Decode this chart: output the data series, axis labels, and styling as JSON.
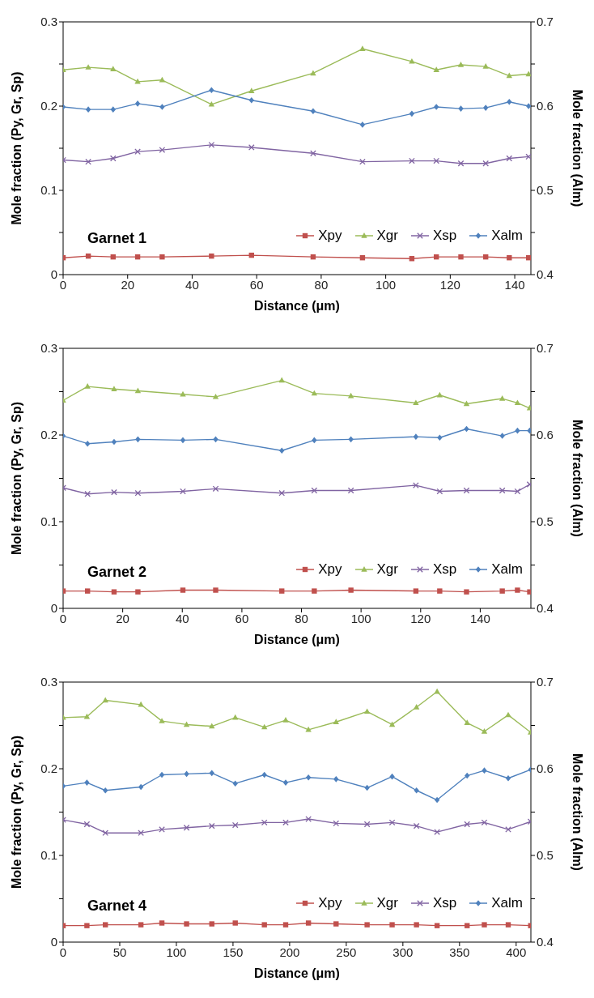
{
  "chart_data": [
    {
      "type": "line",
      "xlabel": "Distance (μm)",
      "ylabel": "Mole fraction (Py, Gr, Sp)",
      "y2label": "Mole fraction (Alm)",
      "annotations": [
        "Garnet 1"
      ],
      "legend": "bottom right",
      "x": [
        0,
        7.8,
        15.5,
        23.1,
        30.7,
        46,
        58.4,
        77.5,
        92.8,
        108.1,
        115.7,
        123.3,
        131,
        138.3,
        144.3
      ],
      "xlim": [
        0,
        145
      ],
      "xticks": [
        0,
        20,
        40,
        60,
        80,
        100,
        120,
        140
      ],
      "ylim": [
        0,
        0.3
      ],
      "yticks": [
        0,
        {
          "value": 0.05,
          "label": null
        },
        0.1,
        {
          "value": 0.15,
          "label": null
        },
        0.2,
        {
          "value": 0.25,
          "label": null
        },
        0.3
      ],
      "y2lim": [
        0.4,
        0.7
      ],
      "y2ticks": [
        0.4,
        {
          "value": 0.45,
          "label": null
        },
        0.5,
        {
          "value": 0.55,
          "label": null
        },
        0.6,
        {
          "value": 0.65,
          "label": null
        },
        0.7
      ],
      "series": [
        {
          "name": "Xpy",
          "color": "#c0504d",
          "marker": "square",
          "values": [
            0.02,
            0.022,
            0.021,
            0.021,
            0.021,
            0.022,
            0.023,
            0.021,
            0.02,
            0.019,
            0.021,
            0.021,
            0.021,
            0.02,
            0.02
          ]
        },
        {
          "name": "Xgr",
          "color": "#9bbb59",
          "marker": "triangle",
          "values": [
            0.243,
            0.246,
            0.244,
            0.229,
            0.231,
            0.202,
            0.218,
            0.239,
            0.268,
            0.253,
            0.243,
            0.249,
            0.247,
            0.236,
            0.238
          ]
        },
        {
          "name": "Xsp",
          "color": "#8064a2",
          "marker": "cross",
          "values": [
            0.136,
            0.134,
            0.138,
            0.146,
            0.148,
            0.154,
            0.151,
            0.144,
            0.134,
            0.135,
            0.135,
            0.132,
            0.132,
            0.138,
            0.14
          ]
        },
        {
          "name": "Xalm",
          "color": "#4f81bd",
          "marker": "diamond",
          "axis": "y2",
          "values": [
            0.599,
            0.596,
            0.596,
            0.603,
            0.599,
            0.619,
            0.607,
            0.594,
            0.578,
            0.591,
            0.599,
            0.597,
            0.598,
            0.605,
            0.6
          ]
        }
      ]
    },
    {
      "type": "line",
      "xlabel": "Distance (μm)",
      "ylabel": "Mole fraction (Py, Gr, Sp)",
      "y2label": "Mole fraction (Alm)",
      "annotations": [
        "Garnet 2"
      ],
      "legend": "bottom right",
      "x": [
        0,
        8.2,
        17.1,
        25.1,
        40.2,
        51.2,
        73.4,
        84.3,
        96.6,
        118.4,
        126.4,
        135.4,
        147.4,
        152.5,
        156.6
      ],
      "xlim": [
        0,
        157
      ],
      "xticks": [
        0,
        20,
        40,
        60,
        80,
        100,
        120,
        140
      ],
      "ylim": [
        0,
        0.3
      ],
      "yticks": [
        0,
        {
          "value": 0.05,
          "label": null
        },
        0.1,
        {
          "value": 0.15,
          "label": null
        },
        0.2,
        {
          "value": 0.25,
          "label": null
        },
        0.3
      ],
      "y2lim": [
        0.4,
        0.7
      ],
      "y2ticks": [
        0.4,
        {
          "value": 0.45,
          "label": null
        },
        0.5,
        {
          "value": 0.55,
          "label": null
        },
        0.6,
        {
          "value": 0.65,
          "label": null
        },
        0.7
      ],
      "series": [
        {
          "name": "Xpy",
          "color": "#c0504d",
          "marker": "square",
          "values": [
            0.02,
            0.02,
            0.019,
            0.019,
            0.021,
            0.021,
            0.02,
            0.02,
            0.021,
            0.02,
            0.02,
            0.019,
            0.02,
            0.021,
            0.019
          ]
        },
        {
          "name": "Xgr",
          "color": "#9bbb59",
          "marker": "triangle",
          "values": [
            0.24,
            0.256,
            0.253,
            0.251,
            0.247,
            0.244,
            0.263,
            0.248,
            0.245,
            0.237,
            0.246,
            0.236,
            0.242,
            0.237,
            0.231
          ]
        },
        {
          "name": "Xsp",
          "color": "#8064a2",
          "marker": "cross",
          "values": [
            0.139,
            0.132,
            0.134,
            0.133,
            0.135,
            0.138,
            0.133,
            0.136,
            0.136,
            0.142,
            0.135,
            0.136,
            0.136,
            0.135,
            0.143
          ]
        },
        {
          "name": "Xalm",
          "color": "#4f81bd",
          "marker": "diamond",
          "axis": "y2",
          "values": [
            0.599,
            0.59,
            0.592,
            0.595,
            0.594,
            0.595,
            0.582,
            0.594,
            0.595,
            0.598,
            0.597,
            0.607,
            0.599,
            0.605,
            0.605
          ]
        }
      ]
    },
    {
      "type": "line",
      "xlabel": "Distance (μm)",
      "ylabel": "Mole fraction (Py, Gr, Sp)",
      "y2label": "Mole fraction (Alm)",
      "annotations": [
        "Garnet 4"
      ],
      "legend": "bottom right",
      "x": [
        0,
        21,
        37.3,
        68.7,
        87.2,
        109,
        131.3,
        152,
        177.7,
        196.5,
        216.6,
        241,
        268.4,
        290.5,
        312,
        330.2,
        356.7,
        371.9,
        393,
        412.8
      ],
      "xlim": [
        0,
        413
      ],
      "xticks": [
        0,
        50,
        100,
        150,
        200,
        250,
        300,
        350,
        400
      ],
      "ylim": [
        0,
        0.3
      ],
      "yticks": [
        0,
        {
          "value": 0.05,
          "label": null
        },
        0.1,
        {
          "value": 0.15,
          "label": null
        },
        0.2,
        {
          "value": 0.25,
          "label": null
        },
        0.3
      ],
      "y2lim": [
        0.4,
        0.7
      ],
      "y2ticks": [
        0.4,
        {
          "value": 0.45,
          "label": null
        },
        0.5,
        {
          "value": 0.55,
          "label": null
        },
        0.6,
        {
          "value": 0.65,
          "label": null
        },
        0.7
      ],
      "series": [
        {
          "name": "Xpy",
          "color": "#c0504d",
          "marker": "square",
          "values": [
            0.019,
            0.019,
            0.02,
            0.02,
            0.022,
            0.021,
            0.021,
            0.022,
            0.02,
            0.02,
            0.022,
            0.021,
            0.02,
            0.02,
            0.02,
            0.019,
            0.019,
            0.02,
            0.02,
            0.019
          ]
        },
        {
          "name": "Xgr",
          "color": "#9bbb59",
          "marker": "triangle",
          "values": [
            0.259,
            0.26,
            0.279,
            0.274,
            0.255,
            0.251,
            0.249,
            0.259,
            0.248,
            0.256,
            0.245,
            0.254,
            0.266,
            0.251,
            0.271,
            0.289,
            0.253,
            0.243,
            0.262,
            0.242
          ]
        },
        {
          "name": "Xsp",
          "color": "#8064a2",
          "marker": "cross",
          "values": [
            0.141,
            0.136,
            0.126,
            0.126,
            0.13,
            0.132,
            0.134,
            0.135,
            0.138,
            0.138,
            0.142,
            0.137,
            0.136,
            0.138,
            0.134,
            0.127,
            0.136,
            0.138,
            0.13,
            0.139
          ]
        },
        {
          "name": "Xalm",
          "color": "#4f81bd",
          "marker": "diamond",
          "axis": "y2",
          "values": [
            0.58,
            0.584,
            0.575,
            0.579,
            0.593,
            0.594,
            0.595,
            0.583,
            0.593,
            0.584,
            0.59,
            0.588,
            0.578,
            0.591,
            0.575,
            0.564,
            0.592,
            0.598,
            0.589,
            0.599
          ]
        }
      ]
    }
  ]
}
